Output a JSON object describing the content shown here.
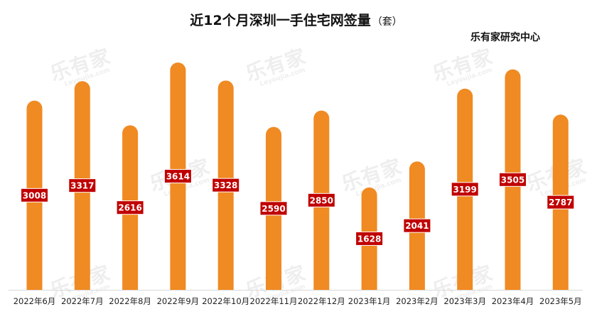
{
  "title": "近12个月深圳一手住宅网签量",
  "unit": "（套）",
  "source": "乐有家研究中心",
  "watermark": {
    "cn": "乐有家",
    "en": "Leyoujia.com"
  },
  "colors": {
    "bar": "#F08A22",
    "label_bg": "#C00000",
    "label_text": "#ffffff",
    "axis_line": "#d9d9d9"
  },
  "chart_data": {
    "type": "bar",
    "title": "近12个月深圳一手住宅网签量",
    "unit": "套",
    "categories": [
      "2022年6月",
      "2022年7月",
      "2022年8月",
      "2022年9月",
      "2022年10月",
      "2022年11月",
      "2022年12月",
      "2023年1月",
      "2023年2月",
      "2023年3月",
      "2023年4月",
      "2023年5月"
    ],
    "values": [
      3008,
      3317,
      2616,
      3614,
      3328,
      2590,
      2850,
      1628,
      2041,
      3199,
      3505,
      2787
    ],
    "data_labels": [
      "3008",
      "3317",
      "2616",
      "3614",
      "3328",
      "2590",
      "2850",
      "1628",
      "2041",
      "3199",
      "3505",
      "2787"
    ],
    "grid": false,
    "legend": "none"
  }
}
